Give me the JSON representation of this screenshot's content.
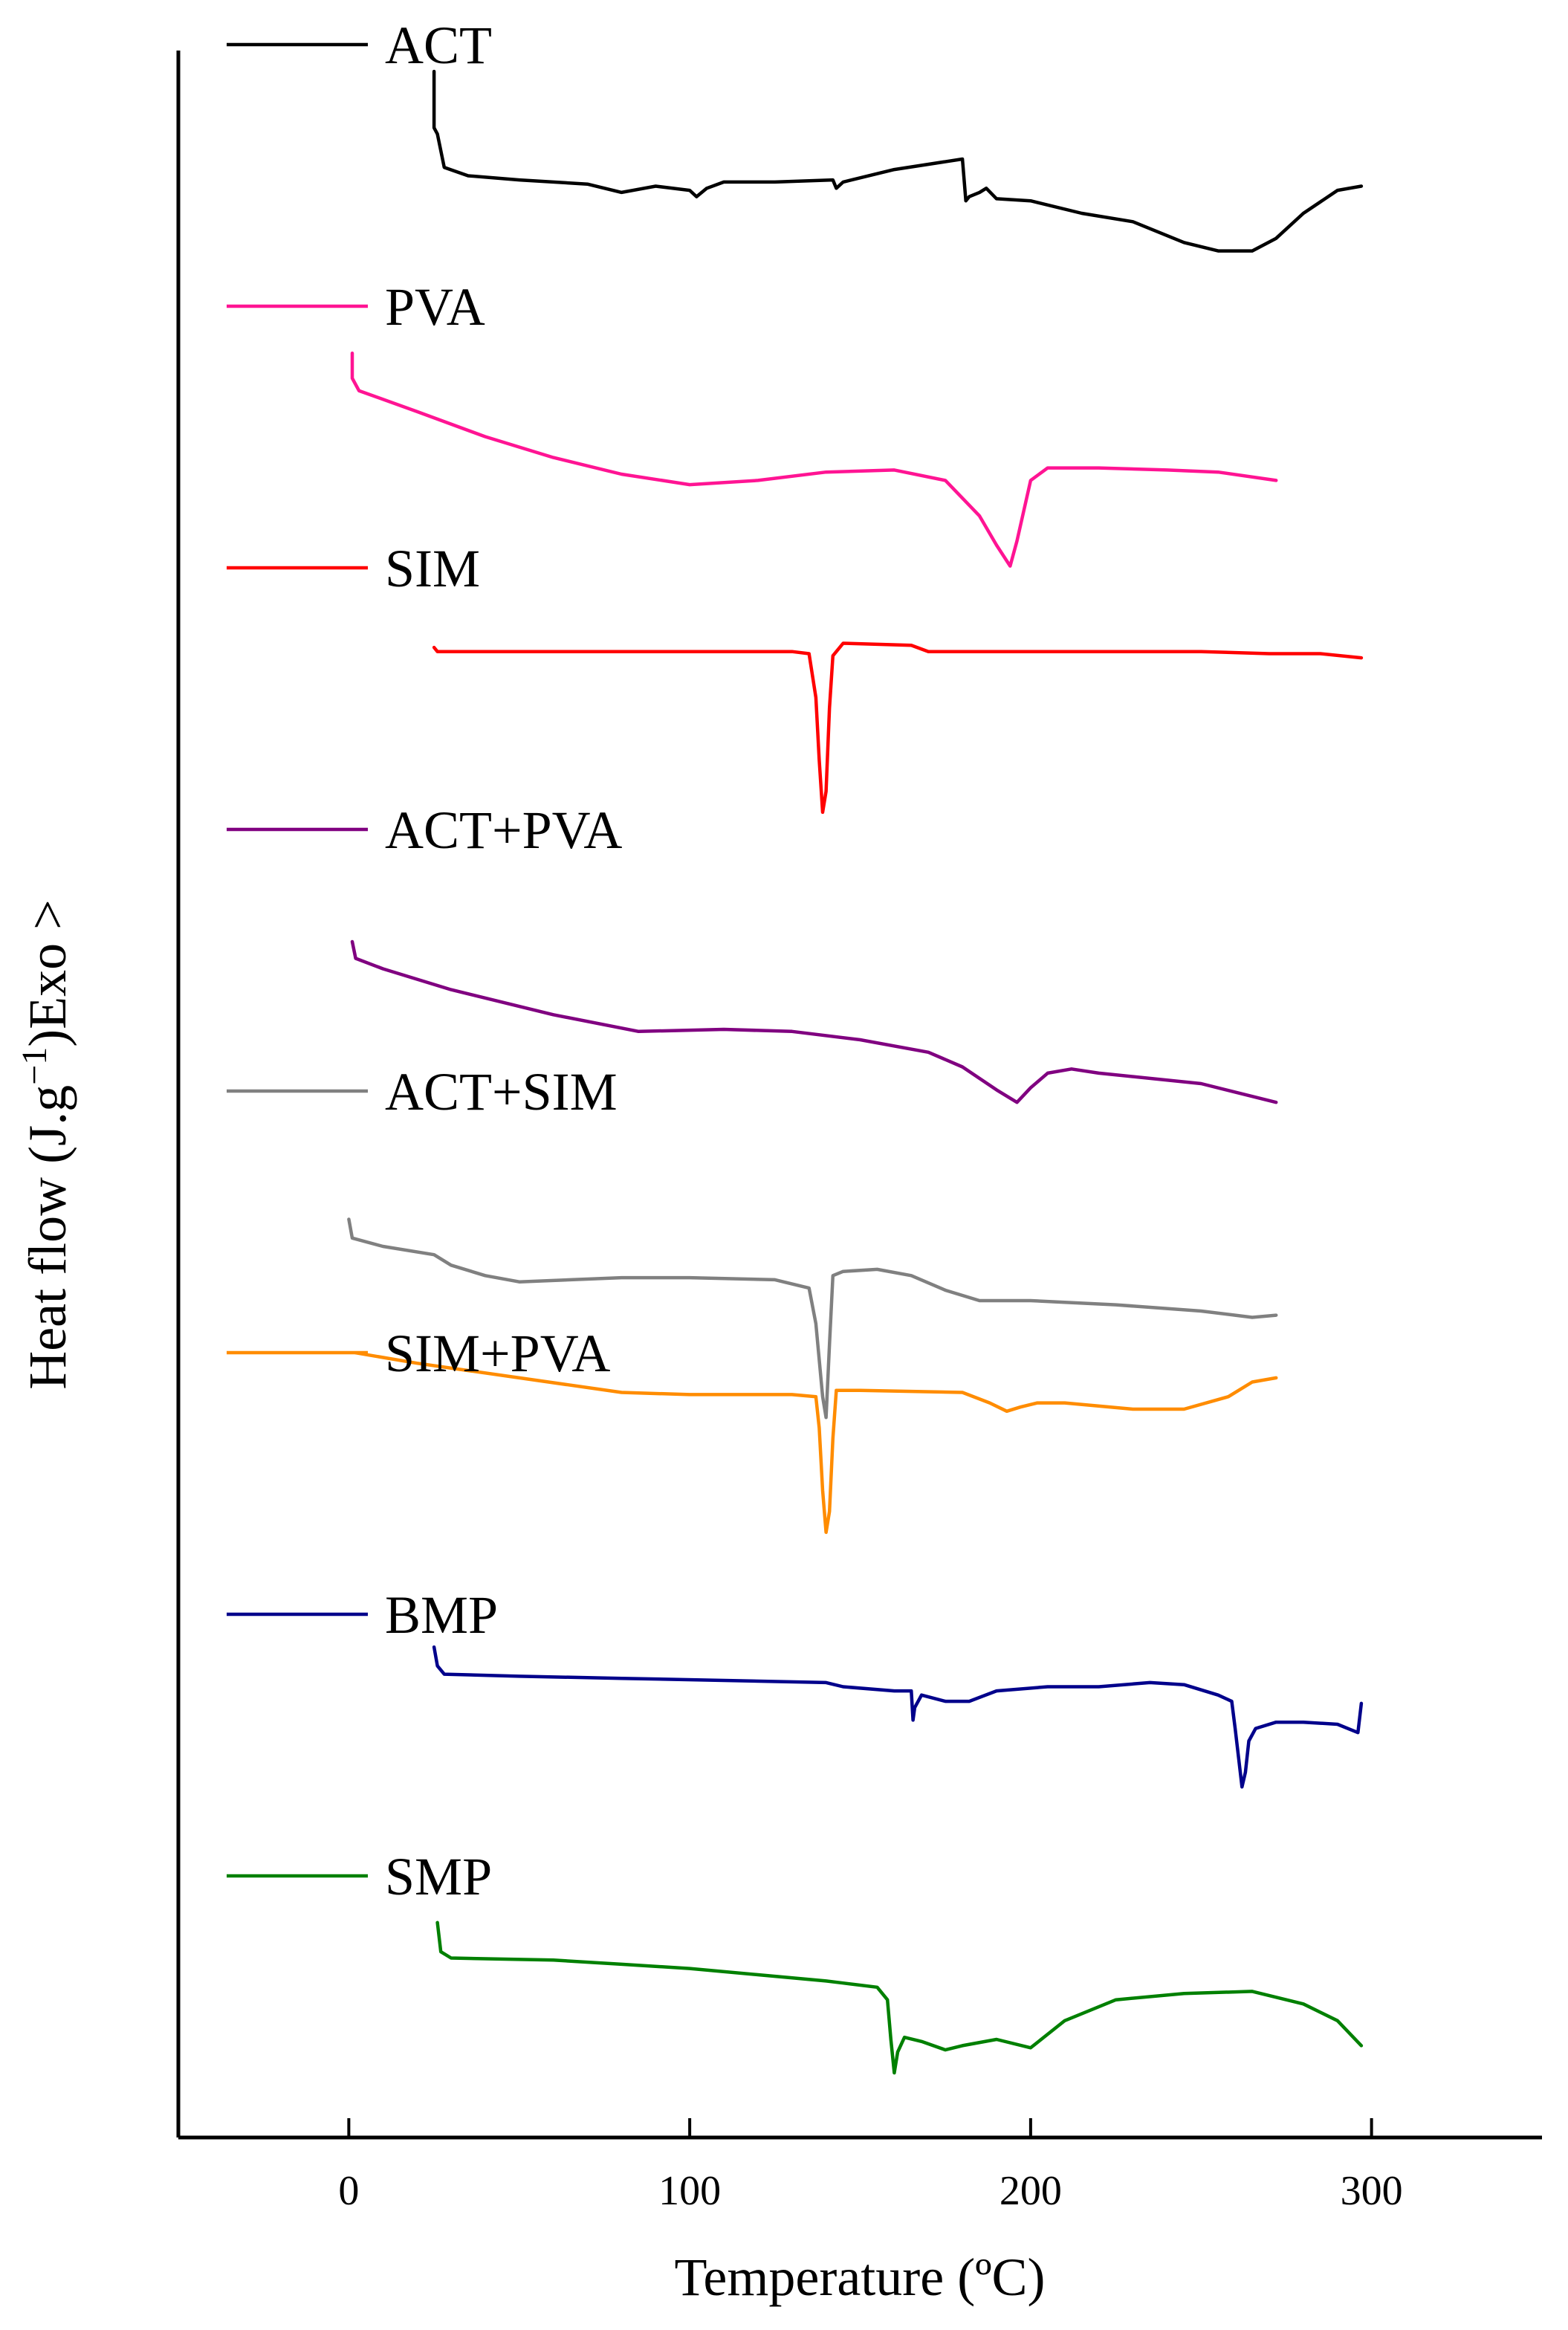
{
  "chart_data": {
    "type": "line",
    "title": "",
    "xlabel": "Temperature (ºC)",
    "ylabel": "Heat flow (J.g⁻¹)Exo >",
    "ylabel_parts": {
      "pre": "Heat flow (J.g",
      "sup": "−1",
      "post": ")Exo >"
    },
    "xlim": [
      -50,
      350
    ],
    "ylim": [
      0,
      100
    ],
    "xticks": [
      0,
      100,
      200,
      300
    ],
    "xtick_labels": [
      "0",
      "100",
      "200",
      "300"
    ],
    "grid": false,
    "legend_placement": "inline-left",
    "y_units": "arbitrary (offset traces)",
    "series": [
      {
        "name": "ACT",
        "color": "#000000",
        "points": [
          [
            25,
            99
          ],
          [
            25,
            96.3
          ],
          [
            26,
            96
          ],
          [
            28,
            94.4
          ],
          [
            35,
            94
          ],
          [
            50,
            93.8
          ],
          [
            70,
            93.6
          ],
          [
            80,
            93.2
          ],
          [
            90,
            93.5
          ],
          [
            100,
            93.3
          ],
          [
            102,
            93
          ],
          [
            105,
            93.4
          ],
          [
            110,
            93.7
          ],
          [
            125,
            93.7
          ],
          [
            142,
            93.8
          ],
          [
            143,
            93.4
          ],
          [
            145,
            93.7
          ],
          [
            160,
            94.3
          ],
          [
            180,
            94.8
          ],
          [
            181,
            92.8
          ],
          [
            182,
            93
          ],
          [
            185,
            93.2
          ],
          [
            187,
            93.4
          ],
          [
            190,
            92.9
          ],
          [
            200,
            92.8
          ],
          [
            215,
            92.2
          ],
          [
            230,
            91.8
          ],
          [
            245,
            90.8
          ],
          [
            255,
            90.4
          ],
          [
            265,
            90.4
          ],
          [
            272,
            91
          ],
          [
            280,
            92.2
          ],
          [
            290,
            93.3
          ],
          [
            297,
            93.5
          ]
        ]
      },
      {
        "name": "PVA",
        "color": "#ff1493",
        "points": [
          [
            1,
            85.5
          ],
          [
            1,
            84.3
          ],
          [
            3,
            83.7
          ],
          [
            20,
            82.7
          ],
          [
            40,
            81.5
          ],
          [
            60,
            80.5
          ],
          [
            80,
            79.7
          ],
          [
            100,
            79.2
          ],
          [
            120,
            79.4
          ],
          [
            140,
            79.8
          ],
          [
            160,
            79.9
          ],
          [
            175,
            79.4
          ],
          [
            185,
            77.7
          ],
          [
            190,
            76.3
          ],
          [
            194,
            75.3
          ],
          [
            196,
            76.5
          ],
          [
            200,
            79.4
          ],
          [
            205,
            80
          ],
          [
            220,
            80
          ],
          [
            240,
            79.9
          ],
          [
            255,
            79.8
          ],
          [
            272,
            79.4
          ]
        ]
      },
      {
        "name": "SIM",
        "color": "#ff0000",
        "points": [
          [
            25,
            71.4
          ],
          [
            26,
            71.2
          ],
          [
            30,
            71.2
          ],
          [
            60,
            71.2
          ],
          [
            100,
            71.2
          ],
          [
            130,
            71.2
          ],
          [
            135,
            71.1
          ],
          [
            137,
            69
          ],
          [
            138,
            66
          ],
          [
            139,
            63.5
          ],
          [
            140,
            64.5
          ],
          [
            141,
            68.5
          ],
          [
            142,
            71
          ],
          [
            145,
            71.6
          ],
          [
            165,
            71.5
          ],
          [
            170,
            71.2
          ],
          [
            200,
            71.2
          ],
          [
            250,
            71.2
          ],
          [
            270,
            71.1
          ],
          [
            285,
            71.1
          ],
          [
            297,
            70.9
          ]
        ]
      },
      {
        "name": "ACT+PVA",
        "color": "#800080",
        "points": [
          [
            1,
            57.3
          ],
          [
            2,
            56.5
          ],
          [
            10,
            56
          ],
          [
            30,
            55
          ],
          [
            60,
            53.8
          ],
          [
            85,
            53
          ],
          [
            110,
            53.1
          ],
          [
            130,
            53
          ],
          [
            150,
            52.6
          ],
          [
            170,
            52
          ],
          [
            180,
            51.3
          ],
          [
            190,
            50.2
          ],
          [
            196,
            49.6
          ],
          [
            200,
            50.3
          ],
          [
            205,
            51
          ],
          [
            212,
            51.2
          ],
          [
            220,
            51
          ],
          [
            250,
            50.5
          ],
          [
            272,
            49.6
          ]
        ]
      },
      {
        "name": "ACT+SIM",
        "color": "#808080",
        "points": [
          [
            0,
            44
          ],
          [
            1,
            43.1
          ],
          [
            10,
            42.7
          ],
          [
            25,
            42.3
          ],
          [
            30,
            41.8
          ],
          [
            40,
            41.3
          ],
          [
            50,
            41
          ],
          [
            80,
            41.2
          ],
          [
            100,
            41.2
          ],
          [
            125,
            41.1
          ],
          [
            135,
            40.7
          ],
          [
            137,
            39
          ],
          [
            139,
            35.5
          ],
          [
            140,
            34.5
          ],
          [
            141,
            38
          ],
          [
            142,
            41.3
          ],
          [
            145,
            41.5
          ],
          [
            155,
            41.6
          ],
          [
            165,
            41.3
          ],
          [
            175,
            40.6
          ],
          [
            185,
            40.1
          ],
          [
            200,
            40.1
          ],
          [
            225,
            39.9
          ],
          [
            250,
            39.6
          ],
          [
            260,
            39.4
          ],
          [
            265,
            39.3
          ],
          [
            272,
            39.4
          ]
        ]
      },
      {
        "name": "SIM+PVA",
        "color": "#ff8c00",
        "points": [
          [
            2,
            37.6
          ],
          [
            20,
            37.1
          ],
          [
            50,
            36.4
          ],
          [
            80,
            35.7
          ],
          [
            100,
            35.6
          ],
          [
            130,
            35.6
          ],
          [
            137,
            35.5
          ],
          [
            138,
            34
          ],
          [
            139,
            31
          ],
          [
            140,
            29
          ],
          [
            141,
            30
          ],
          [
            142,
            33.5
          ],
          [
            143,
            35.8
          ],
          [
            150,
            35.8
          ],
          [
            180,
            35.7
          ],
          [
            188,
            35.2
          ],
          [
            193,
            34.8
          ],
          [
            197,
            35
          ],
          [
            202,
            35.2
          ],
          [
            210,
            35.2
          ],
          [
            230,
            34.9
          ],
          [
            245,
            34.9
          ],
          [
            258,
            35.5
          ],
          [
            265,
            36.2
          ],
          [
            272,
            36.4
          ]
        ]
      },
      {
        "name": "BMP",
        "color": "#00008b",
        "points": [
          [
            25,
            23.5
          ],
          [
            26,
            22.6
          ],
          [
            28,
            22.2
          ],
          [
            50,
            22.1
          ],
          [
            80,
            22
          ],
          [
            110,
            21.9
          ],
          [
            140,
            21.8
          ],
          [
            145,
            21.6
          ],
          [
            160,
            21.4
          ],
          [
            165,
            21.4
          ],
          [
            165.5,
            20
          ],
          [
            166,
            20.6
          ],
          [
            168,
            21.2
          ],
          [
            175,
            20.9
          ],
          [
            182,
            20.9
          ],
          [
            190,
            21.4
          ],
          [
            205,
            21.6
          ],
          [
            220,
            21.6
          ],
          [
            235,
            21.8
          ],
          [
            245,
            21.7
          ],
          [
            255,
            21.2
          ],
          [
            259,
            20.9
          ],
          [
            260,
            19.6
          ],
          [
            261,
            18.2
          ],
          [
            262,
            16.8
          ],
          [
            263,
            17.5
          ],
          [
            264,
            19
          ],
          [
            266,
            19.6
          ],
          [
            272,
            19.9
          ],
          [
            280,
            19.9
          ],
          [
            290,
            19.8
          ],
          [
            296,
            19.4
          ],
          [
            297,
            20.8
          ]
        ]
      },
      {
        "name": "SMP",
        "color": "#008000",
        "points": [
          [
            26,
            10.3
          ],
          [
            27,
            8.9
          ],
          [
            30,
            8.6
          ],
          [
            60,
            8.5
          ],
          [
            80,
            8.3
          ],
          [
            100,
            8.1
          ],
          [
            120,
            7.8
          ],
          [
            140,
            7.5
          ],
          [
            145,
            7.4
          ],
          [
            155,
            7.2
          ],
          [
            158,
            6.6
          ],
          [
            159,
            4.7
          ],
          [
            160,
            3.1
          ],
          [
            161,
            4.1
          ],
          [
            163,
            4.8
          ],
          [
            168,
            4.6
          ],
          [
            175,
            4.2
          ],
          [
            180,
            4.4
          ],
          [
            190,
            4.7
          ],
          [
            200,
            4.3
          ],
          [
            210,
            5.6
          ],
          [
            225,
            6.6
          ],
          [
            245,
            6.9
          ],
          [
            265,
            7
          ],
          [
            280,
            6.4
          ],
          [
            290,
            5.6
          ],
          [
            297,
            4.4
          ]
        ]
      }
    ]
  }
}
